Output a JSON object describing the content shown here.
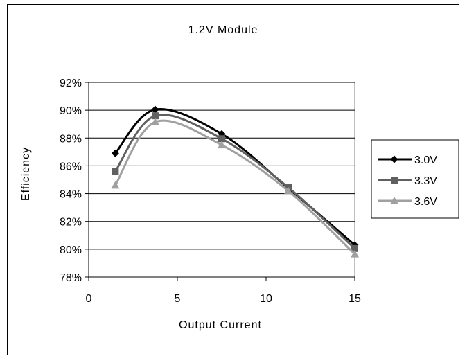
{
  "chart_data": {
    "type": "line",
    "title": "1.2V Module",
    "xlabel": "Output Current",
    "ylabel": "Efficiency",
    "xlim": [
      0,
      15
    ],
    "ylim": [
      78,
      92
    ],
    "x_ticks": [
      0,
      5,
      10,
      15
    ],
    "y_ticks": [
      78,
      80,
      82,
      84,
      86,
      88,
      90,
      92
    ],
    "y_tick_labels": [
      "78%",
      "80%",
      "82%",
      "84%",
      "86%",
      "88%",
      "90%",
      "92%"
    ],
    "x_tick_labels": [
      "0",
      "5",
      "10",
      "15"
    ],
    "grid": "horizontal",
    "legend_position": "right",
    "x": [
      1.5,
      3.75,
      7.5,
      11.25,
      15
    ],
    "series": [
      {
        "name": "3.0V",
        "values": [
          86.9,
          90.05,
          88.3,
          84.4,
          80.3
        ],
        "color": "#000000",
        "marker": "diamond"
      },
      {
        "name": "3.3V",
        "values": [
          85.6,
          89.6,
          87.95,
          84.45,
          80.05
        ],
        "color": "#606060",
        "marker": "square"
      },
      {
        "name": "3.6V",
        "values": [
          84.6,
          89.15,
          87.5,
          84.2,
          79.65
        ],
        "color": "#a0a0a0",
        "marker": "triangle"
      }
    ]
  }
}
